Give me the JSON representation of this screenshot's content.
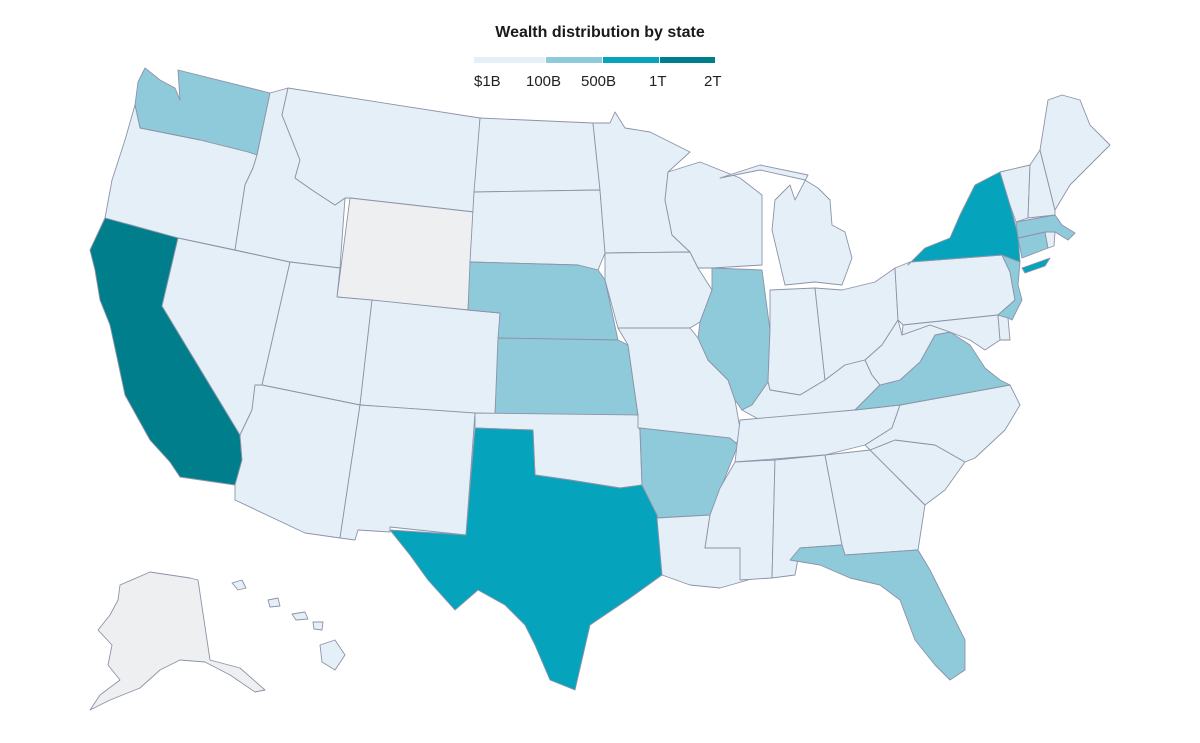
{
  "map": {
    "title": "Wealth distribution by state",
    "legend": {
      "bins": [
        {
          "label": "$1B",
          "color": "#e4eff7"
        },
        {
          "label": "100B",
          "color": "#8ecad9"
        },
        {
          "label": "500B",
          "color": "#06a3bd"
        },
        {
          "label": "1T",
          "color": "#007e8c"
        },
        {
          "label": "2T",
          "color": ""
        }
      ],
      "no_data_color": "#edeff1"
    },
    "states": {
      "WA": "100B",
      "OR": "$1B",
      "CA": "1T",
      "NV": "$1B",
      "ID": "$1B",
      "MT": "$1B",
      "WY": "no data",
      "UT": "$1B",
      "AZ": "$1B",
      "CO": "$1B",
      "NM": "$1B",
      "ND": "$1B",
      "SD": "$1B",
      "NE": "100B",
      "KS": "100B",
      "OK": "$1B",
      "TX": "500B",
      "MN": "$1B",
      "IA": "$1B",
      "MO": "$1B",
      "AR": "100B",
      "LA": "$1B",
      "WI": "$1B",
      "IL": "100B",
      "MI": "$1B",
      "IN": "$1B",
      "OH": "$1B",
      "KY": "$1B",
      "TN": "$1B",
      "MS": "$1B",
      "AL": "$1B",
      "GA": "$1B",
      "FL": "100B",
      "SC": "$1B",
      "NC": "$1B",
      "VA": "100B",
      "WV": "$1B",
      "PA": "$1B",
      "NY": "500B",
      "NJ": "100B",
      "MD": "$1B",
      "DE": "$1B",
      "CT": "100B",
      "RI": "$1B",
      "MA": "100B",
      "VT": "$1B",
      "NH": "$1B",
      "ME": "$1B",
      "AK": "no data",
      "HI": "$1B"
    }
  }
}
